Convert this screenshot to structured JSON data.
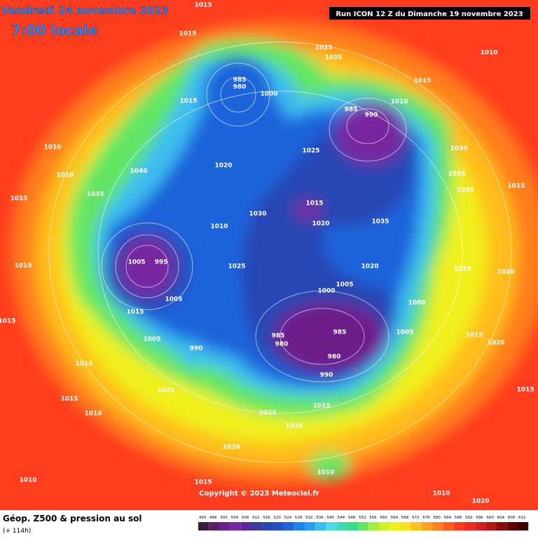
{
  "header": {
    "date": "Vendredi 24 novembre 2023",
    "time": "7:00 locale",
    "run": "Run ICON 12 Z du Dimanche 19 novembre 2023"
  },
  "footer": {
    "title": "Géop. Z500 & pression au sol",
    "lead": "(+ 114h)",
    "copyright": "Copyright © 2023 Meteociel.fr"
  },
  "colorbar": [
    {
      "value": 492,
      "color": "#3c1e3c"
    },
    {
      "value": 496,
      "color": "#5a1e6e"
    },
    {
      "value": 500,
      "color": "#6e1e8c"
    },
    {
      "value": 504,
      "color": "#7828a0"
    },
    {
      "value": 508,
      "color": "#5a28a0"
    },
    {
      "value": 512,
      "color": "#3c3ca0"
    },
    {
      "value": 516,
      "color": "#2846b4"
    },
    {
      "value": 520,
      "color": "#1e50c8"
    },
    {
      "value": 524,
      "color": "#1e64dc"
    },
    {
      "value": 528,
      "color": "#1e82f0"
    },
    {
      "value": 532,
      "color": "#28a0f0"
    },
    {
      "value": 536,
      "color": "#3cbef0"
    },
    {
      "value": 540,
      "color": "#50dcdc"
    },
    {
      "value": 544,
      "color": "#3cdcb4"
    },
    {
      "value": 548,
      "color": "#3cdc8c"
    },
    {
      "value": 552,
      "color": "#64e664"
    },
    {
      "value": 556,
      "color": "#a0f03c"
    },
    {
      "value": 560,
      "color": "#d2f028"
    },
    {
      "value": 564,
      "color": "#f0f01e"
    },
    {
      "value": 568,
      "color": "#ffdc1e"
    },
    {
      "value": 572,
      "color": "#ffbe1e"
    },
    {
      "value": 576,
      "color": "#ffa01e"
    },
    {
      "value": 580,
      "color": "#ff7d1e"
    },
    {
      "value": 584,
      "color": "#ff5a1e"
    },
    {
      "value": 588,
      "color": "#ff3c1e"
    },
    {
      "value": 592,
      "color": "#f0281e"
    },
    {
      "value": 596,
      "color": "#d21e1e"
    },
    {
      "value": 600,
      "color": "#b41414"
    },
    {
      "value": 604,
      "color": "#8c0a0a"
    },
    {
      "value": 608,
      "color": "#640000"
    },
    {
      "value": 612,
      "color": "#3c0000"
    }
  ],
  "pressure_labels": [
    "1015",
    "1015",
    "1025",
    "1020",
    "1010",
    "1015",
    "985",
    "980",
    "1000",
    "1015",
    "985",
    "990",
    "1010",
    "1010",
    "1010",
    "1035",
    "1040",
    "1025",
    "1020",
    "1035",
    "1035",
    "1030",
    "1015",
    "1015",
    "1015",
    "1030",
    "1020",
    "1035",
    "1010",
    "1005",
    "995",
    "1015",
    "1025",
    "1020",
    "1000",
    "1005",
    "1005",
    "1015",
    "1000",
    "1015",
    "985",
    "985",
    "980",
    "980",
    "990",
    "1005",
    "1005",
    "1015",
    "990",
    "1025",
    "1015",
    "1010",
    "1015",
    "1025",
    "1020",
    "1020",
    "1010",
    "1015",
    "1010",
    "1010",
    "1020",
    "1015",
    "1020",
    "1015",
    "1020",
    "1025"
  ]
}
